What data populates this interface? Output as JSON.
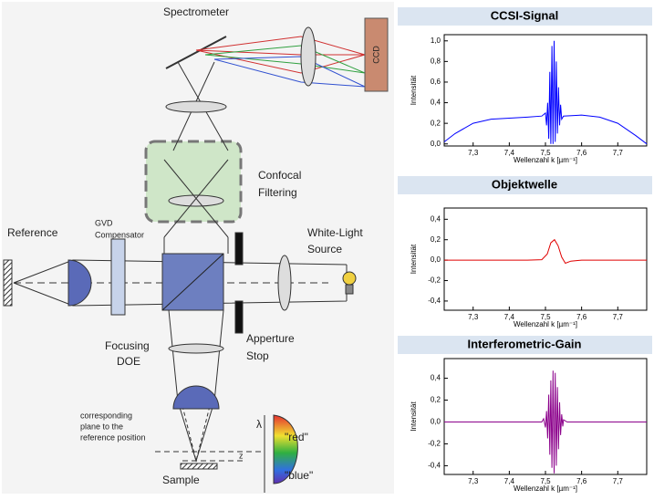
{
  "diagram": {
    "labels": [
      "Spectrometer",
      "CCD",
      "Confocal",
      "Filtering",
      "Reference",
      "GVD",
      "Compensator",
      "White-Light",
      "Source",
      "Apperture",
      "Stop",
      "Focusing",
      "DOE",
      "corresponding",
      "plane to the",
      "reference position",
      "λ",
      "\"red\"",
      "\"blue\"",
      "z",
      "Sample"
    ]
  },
  "chart_data": [
    {
      "type": "line",
      "title": "CCSI-Signal",
      "x_label": "Wellenzahl k [µm⁻¹]",
      "y_label": "Intensität",
      "color": "#0000ff",
      "x": [
        7.22,
        7.25,
        7.3,
        7.35,
        7.4,
        7.45,
        7.49,
        7.5,
        7.503,
        7.506,
        7.509,
        7.512,
        7.515,
        7.518,
        7.521,
        7.524,
        7.527,
        7.53,
        7.533,
        7.536,
        7.539,
        7.542,
        7.545,
        7.55,
        7.6,
        7.65,
        7.7,
        7.75,
        7.78
      ],
      "values": [
        0.02,
        0.1,
        0.2,
        0.24,
        0.25,
        0.26,
        0.27,
        0.3,
        0.18,
        0.4,
        0.05,
        0.7,
        0.0,
        0.95,
        0.0,
        1.0,
        0.02,
        0.8,
        0.1,
        0.55,
        0.18,
        0.38,
        0.24,
        0.27,
        0.28,
        0.26,
        0.2,
        0.08,
        0.0
      ],
      "xlim": [
        7.22,
        7.78
      ],
      "ylim": [
        -0.02,
        1.06
      ],
      "xticks": [
        {
          "value": 7.3,
          "label": "7,3"
        },
        {
          "value": 7.4,
          "label": "7,4"
        },
        {
          "value": 7.5,
          "label": "7,5"
        },
        {
          "value": 7.6,
          "label": "7,6"
        },
        {
          "value": 7.7,
          "label": "7,7"
        }
      ],
      "yticks": [
        {
          "value": 0,
          "label": "0,0"
        },
        {
          "value": 0.2,
          "label": "0,2"
        },
        {
          "value": 0.4,
          "label": "0,4"
        },
        {
          "value": 0.6,
          "label": "0,6"
        },
        {
          "value": 0.8,
          "label": "0,8"
        },
        {
          "value": 1.0,
          "label": "1,0"
        }
      ]
    },
    {
      "type": "line",
      "title": "Objektwelle",
      "x_label": "Wellenzahl k [µm⁻¹]",
      "y_label": "Intensität",
      "color": "#e00000",
      "x": [
        7.22,
        7.45,
        7.49,
        7.505,
        7.515,
        7.525,
        7.535,
        7.545,
        7.555,
        7.57,
        7.6,
        7.78
      ],
      "values": [
        0,
        0,
        0.005,
        0.06,
        0.17,
        0.2,
        0.14,
        0.03,
        -0.03,
        -0.01,
        0,
        0
      ],
      "xlim": [
        7.22,
        7.78
      ],
      "ylim": [
        -0.49,
        0.51
      ],
      "xticks": [
        {
          "value": 7.3,
          "label": "7,3"
        },
        {
          "value": 7.4,
          "label": "7,4"
        },
        {
          "value": 7.5,
          "label": "7,5"
        },
        {
          "value": 7.6,
          "label": "7,6"
        },
        {
          "value": 7.7,
          "label": "7,7"
        }
      ],
      "yticks": [
        {
          "value": -0.4,
          "label": "-0,4"
        },
        {
          "value": -0.2,
          "label": "-0,2"
        },
        {
          "value": 0,
          "label": "0,0"
        },
        {
          "value": 0.2,
          "label": "0,2"
        },
        {
          "value": 0.4,
          "label": "0,4"
        }
      ]
    },
    {
      "type": "line",
      "title": "Interferometric-Gain",
      "x_label": "Wellenzahl k [µm⁻¹]",
      "y_label": "Intensität",
      "color": "#8b008b",
      "x": [
        7.22,
        7.49,
        7.495,
        7.5,
        7.503,
        7.506,
        7.509,
        7.512,
        7.515,
        7.518,
        7.521,
        7.524,
        7.527,
        7.53,
        7.533,
        7.536,
        7.539,
        7.542,
        7.545,
        7.548,
        7.55,
        7.56,
        7.78
      ],
      "values": [
        0,
        0,
        0.03,
        -0.05,
        0.1,
        -0.15,
        0.25,
        -0.3,
        0.38,
        -0.42,
        0.47,
        -0.47,
        0.45,
        -0.4,
        0.32,
        -0.25,
        0.18,
        -0.12,
        0.07,
        -0.04,
        0.02,
        0,
        0
      ],
      "xlim": [
        7.22,
        7.78
      ],
      "ylim": [
        -0.48,
        0.58
      ],
      "xticks": [
        {
          "value": 7.3,
          "label": "7,3"
        },
        {
          "value": 7.4,
          "label": "7,4"
        },
        {
          "value": 7.5,
          "label": "7,5"
        },
        {
          "value": 7.6,
          "label": "7,6"
        },
        {
          "value": 7.7,
          "label": "7,7"
        }
      ],
      "yticks": [
        {
          "value": -0.4,
          "label": "-0,4"
        },
        {
          "value": -0.2,
          "label": "-0,2"
        },
        {
          "value": 0,
          "label": "0,0"
        },
        {
          "value": 0.2,
          "label": "0,2"
        },
        {
          "value": 0.4,
          "label": "0,4"
        }
      ]
    }
  ]
}
